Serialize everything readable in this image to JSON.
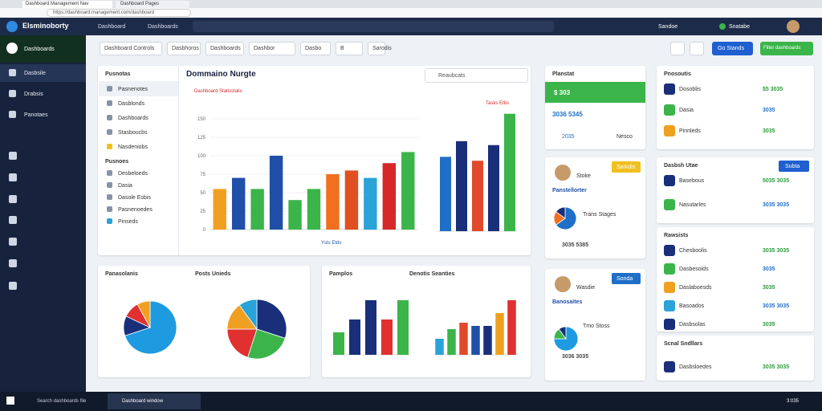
{
  "browser": {
    "tabs": [
      "Dashboard Management Nav",
      "Dashboard Pages"
    ],
    "url": "https://dashboard.management.com/dashboard"
  },
  "header": {
    "brand": "Elsminoborty",
    "nav": [
      "Dashboard",
      "Dashboards"
    ],
    "user": "Sandoe",
    "notify": "Snatabe"
  },
  "sidebar": {
    "title": "Dashboards",
    "items": [
      "Dasbsile",
      "Drabsis",
      "Panotaes"
    ]
  },
  "filters": [
    "Dashboard Controls",
    "Dasbhoros",
    "Dashboards",
    "Dashbor",
    "Dasbo",
    "B",
    "Sarodis"
  ],
  "buttons": [
    "Go Stands",
    "Filter dashboards"
  ],
  "main_card": {
    "title": "Dommaino Nurgte",
    "subtitle": "Dashboard Statisstalis",
    "search": "Reaubcats",
    "list_title": "Pusnotas",
    "list": [
      "Pasnenotes",
      "Dasblonds",
      "Dashboards",
      "Stasboucbs",
      "Nasdeniobs"
    ],
    "section": "Pusnoes",
    "list2": [
      "Desbeloeds",
      "Dasia",
      "Dasole Esbis",
      "Pasnenoedes",
      "Pinseds"
    ],
    "legend": "Tasks Etbs",
    "axis_label": "Ysts Etds"
  },
  "bar_charts": [
    {
      "ylim": [
        0,
        150
      ],
      "yticks": [
        0,
        25,
        50,
        75,
        100,
        125,
        150
      ],
      "values": [
        55,
        70,
        55,
        100,
        40,
        55,
        75,
        80,
        70,
        90,
        105
      ],
      "colors": [
        "#f0a020",
        "#1f4fa8",
        "#3bb54a",
        "#1f4fa8",
        "#3bb54a",
        "#3bb54a",
        "#f07020",
        "#e05020",
        "#29a3d8",
        "#d62828",
        "#3bb54a"
      ]
    },
    {
      "ylim": [
        0,
        160
      ],
      "values": [
        95,
        115,
        90,
        110,
        150
      ],
      "colors": [
        "#1f6fc8",
        "#1a2f7a",
        "#e04a2a",
        "#1a2f7a",
        "#3bb54a"
      ]
    },
    {
      "ylim": [
        0,
        100
      ],
      "values": [
        35,
        55,
        85,
        55,
        85
      ],
      "colors": [
        "#3bb54a",
        "#1a2f7a",
        "#1a2f7a",
        "#e03030",
        "#3bb54a"
      ]
    },
    {
      "ylim": [
        0,
        100
      ],
      "values": [
        25,
        40,
        50,
        45,
        45,
        65,
        85
      ],
      "colors": [
        "#29a3d8",
        "#3bb54a",
        "#e04a2a",
        "#1f4fa8",
        "#1a2f7a",
        "#f0a020",
        "#e03030"
      ]
    }
  ],
  "pies": [
    {
      "values": [
        70,
        12,
        10,
        8
      ],
      "colors": [
        "#1e9be0",
        "#1a2f7a",
        "#e03030",
        "#f0a020"
      ]
    },
    {
      "values": [
        30,
        25,
        20,
        15,
        10
      ],
      "colors": [
        "#1a2f7a",
        "#3bb54a",
        "#e03030",
        "#f0a020",
        "#29a3d8"
      ]
    },
    {
      "values": [
        65,
        20,
        15
      ],
      "colors": [
        "#1e6fc8",
        "#f07020",
        "#1a2f7a"
      ]
    },
    {
      "values": [
        75,
        15,
        10
      ],
      "colors": [
        "#1e9be0",
        "#3bb54a",
        "#1a2f7a"
      ]
    }
  ],
  "cards": {
    "plan": {
      "title": "Planstat",
      "amount": "$ 303",
      "stats": "3036 5345",
      "foot": [
        "2035",
        "Nesco"
      ]
    },
    "profile1": {
      "name": "Stoke",
      "role": "Panstellorter",
      "button": "Sarkdis",
      "legend": "Trans Stages",
      "stats": "3035 5385"
    },
    "profile2": {
      "name": "Wasdie",
      "role": "Banosaites",
      "button": "Sonda",
      "legend": "Tmo Stoss",
      "stats": "3036 3035"
    },
    "pie_card": {
      "title": "Panasolanis",
      "subtitle": "Posts Unieds"
    },
    "bar_card": {
      "title": "Pamplos",
      "subtitle": "Denotis Seanties"
    }
  },
  "right": {
    "top": {
      "title": "Pnosoutis",
      "rows": [
        [
          "Dosoblis",
          "$5 3035"
        ],
        [
          "Dasia",
          "3035"
        ],
        [
          "Pinnleds",
          "3035"
        ]
      ]
    },
    "mid": {
      "title": "Dasbsh Utae",
      "button": "Subta",
      "rows": [
        [
          "Basebous",
          "5035 3035"
        ],
        [
          "Nasutarles",
          "3035 3035"
        ]
      ]
    },
    "list": {
      "title": "Rawsists",
      "rows": [
        [
          "Chesboolis",
          "3035 3035"
        ],
        [
          "Dasbesoids",
          "3035"
        ],
        [
          "Daslaboesds",
          "3035"
        ],
        [
          "Basoados",
          "3035 3035"
        ],
        [
          "Dasbsolas",
          "3035"
        ]
      ]
    },
    "bottom": {
      "title": "Scnal Sndllars",
      "rows": [
        [
          "Dasbsloedes",
          "3035 3035"
        ]
      ]
    }
  },
  "taskbar": {
    "search": "Search dashboards file",
    "app": "Dashboard window",
    "time": "3:035"
  }
}
